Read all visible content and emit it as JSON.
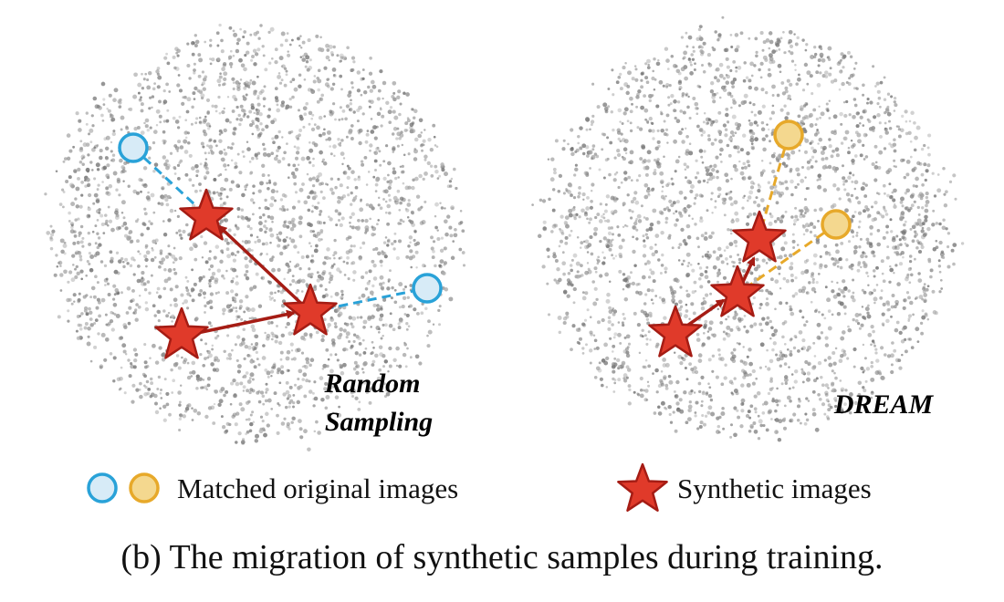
{
  "panels": [
    {
      "id": "random",
      "label_lines": [
        "Random",
        "Sampling"
      ],
      "marker_color": "#29a2d8",
      "marker_fill": "#d7ebf7"
    },
    {
      "id": "dream",
      "label_lines": [
        "DREAM"
      ],
      "marker_color": "#e7a92a",
      "marker_fill": "#f4d88f"
    }
  ],
  "legend": {
    "matched_label": "Matched original images",
    "synthetic_label": "Synthetic images",
    "blue_circle_color": "#29a2d8",
    "orange_circle_color": "#e7a92a",
    "star_color": "#e03a2a",
    "star_stroke": "#a51c14"
  },
  "caption": "(b) The migration of synthetic samples during training.",
  "colors": {
    "arrow": "#a51c14",
    "scatter": "#8a8a8a"
  }
}
